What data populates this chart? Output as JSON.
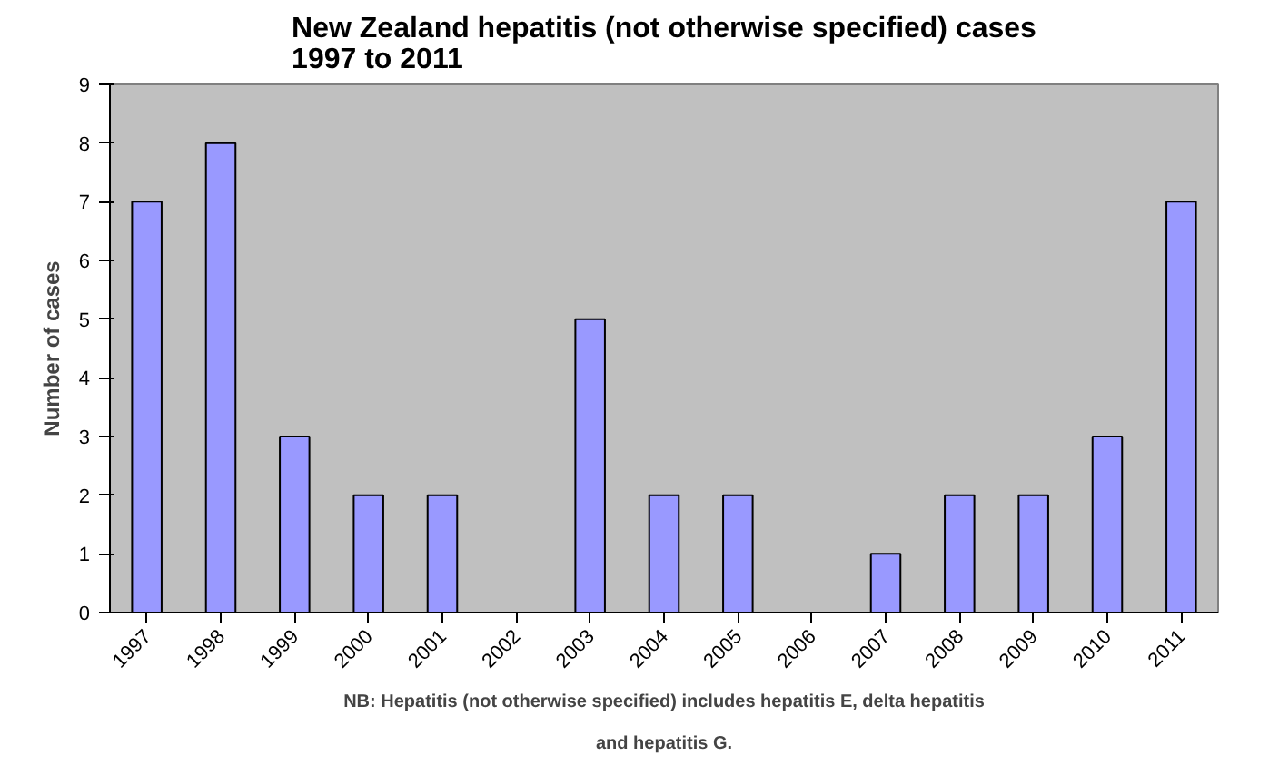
{
  "chart_data": {
    "type": "bar",
    "title": "New Zealand hepatitis (not otherwise specified) cases\n1997 to 2011",
    "ylabel": "Number of cases",
    "categories": [
      "1997",
      "1998",
      "1999",
      "2000",
      "2001",
      "2002",
      "2003",
      "2004",
      "2005",
      "2006",
      "2007",
      "2008",
      "2009",
      "2010",
      "2011"
    ],
    "values": [
      7,
      8,
      3,
      2,
      2,
      0,
      5,
      2,
      2,
      0,
      1,
      2,
      2,
      3,
      7
    ],
    "color": "#9999ff",
    "ylim": [
      0,
      9
    ],
    "yticks": [
      0,
      1,
      2,
      3,
      4,
      5,
      6,
      7,
      8,
      9
    ],
    "grid": false,
    "annotations": [
      "NB: Hepatitis (not otherwise specified) includes hepatitis E, delta hepatitis and hepatitis G."
    ]
  }
}
